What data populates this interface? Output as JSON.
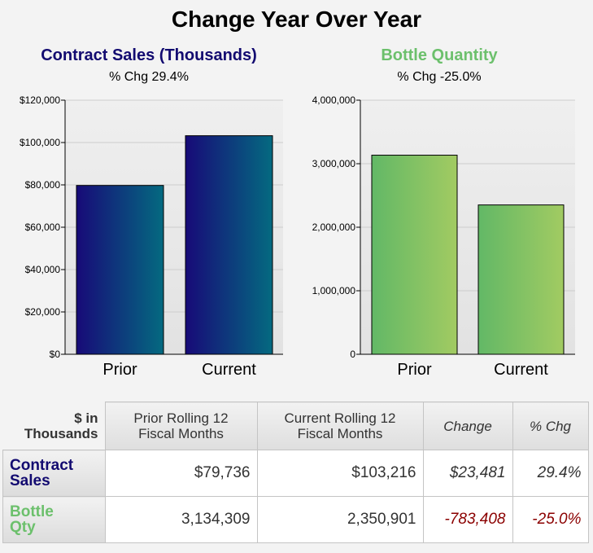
{
  "title": "Change Year Over Year",
  "colors": {
    "sales_title": "#120a70",
    "bottle_title": "#6cc06c",
    "negative": "#8b0000"
  },
  "chart_data": [
    {
      "type": "bar",
      "title": "Contract Sales (Thousands)",
      "subtitle": "% Chg 29.4%",
      "categories": [
        "Prior",
        "Current"
      ],
      "values": [
        79736,
        103216
      ],
      "ylim": [
        0,
        120000
      ],
      "yticks": [
        0,
        20000,
        40000,
        60000,
        80000,
        100000,
        120000
      ],
      "ytick_labels": [
        "$0",
        "$20,000",
        "$40,000",
        "$60,000",
        "$80,000",
        "$100,000",
        "$120,000"
      ],
      "grid": true,
      "gradient": [
        "#170a78",
        "#046a80"
      ]
    },
    {
      "type": "bar",
      "title": "Bottle Quantity",
      "subtitle": "% Chg -25.0%",
      "categories": [
        "Prior",
        "Current"
      ],
      "values": [
        3134309,
        2350901
      ],
      "ylim": [
        0,
        4000000
      ],
      "yticks": [
        0,
        1000000,
        2000000,
        3000000,
        4000000
      ],
      "ytick_labels": [
        "0",
        "1,000,000",
        "2,000,000",
        "3,000,000",
        "4,000,000"
      ],
      "grid": true,
      "gradient": [
        "#62b866",
        "#a2cb62"
      ]
    }
  ],
  "table": {
    "corner": [
      "$ in",
      "Thousands"
    ],
    "headers": [
      [
        "Prior Rolling 12",
        "Fiscal Months"
      ],
      [
        "Current Rolling 12",
        "Fiscal Months"
      ],
      [
        "Change"
      ],
      [
        "% Chg"
      ]
    ],
    "rows": [
      {
        "label": [
          "Contract",
          "Sales"
        ],
        "prior": "$79,736",
        "current": "$103,216",
        "change": "$23,481",
        "pct": "29.4%"
      },
      {
        "label": [
          "Bottle",
          "Qty"
        ],
        "prior": "3,134,309",
        "current": "2,350,901",
        "change": "-783,408",
        "pct": "-25.0%"
      }
    ]
  }
}
